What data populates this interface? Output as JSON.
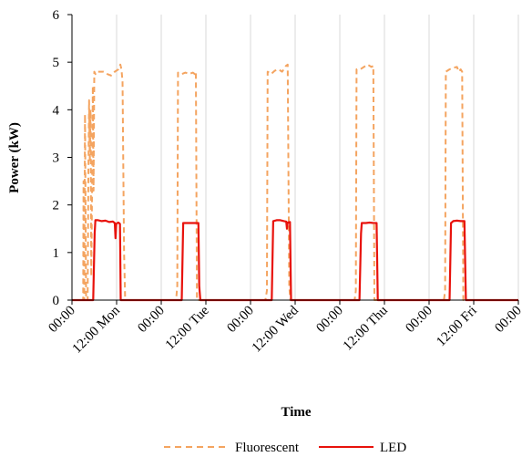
{
  "chart_data": {
    "type": "line",
    "title": "",
    "xlabel": "Time",
    "ylabel": "Power (kW)",
    "xlim": [
      0,
      120
    ],
    "ylim": [
      0,
      6
    ],
    "yticks": [
      0,
      1,
      2,
      3,
      4,
      5,
      6
    ],
    "xticks": [
      {
        "x": 0,
        "label": "00:00"
      },
      {
        "x": 12,
        "label": "12:00 Mon"
      },
      {
        "x": 24,
        "label": "00:00"
      },
      {
        "x": 36,
        "label": "12:00 Tue"
      },
      {
        "x": 48,
        "label": "00:00"
      },
      {
        "x": 60,
        "label": "12:00 Wed"
      },
      {
        "x": 72,
        "label": "00:00"
      },
      {
        "x": 84,
        "label": "12:00 Thu"
      },
      {
        "x": 96,
        "label": "00:00"
      },
      {
        "x": 108,
        "label": "12:00 Fri"
      },
      {
        "x": 120,
        "label": "00:00"
      }
    ],
    "grid": "vertical",
    "legend_position": "bottom",
    "series": [
      {
        "name": "Fluorescent",
        "color": "#f4a460",
        "style": "dashed",
        "points": [
          [
            0,
            0
          ],
          [
            3.0,
            0
          ],
          [
            3.1,
            2.5
          ],
          [
            3.3,
            0
          ],
          [
            3.5,
            3.9
          ],
          [
            3.8,
            0
          ],
          [
            4.2,
            0
          ],
          [
            4.4,
            2.6
          ],
          [
            4.6,
            4.2
          ],
          [
            4.8,
            2.9
          ],
          [
            5.0,
            4.0
          ],
          [
            5.2,
            0.5
          ],
          [
            5.4,
            2.4
          ],
          [
            5.6,
            4.5
          ],
          [
            5.8,
            2.3
          ],
          [
            6.0,
            4.8
          ],
          [
            6.3,
            4.75
          ],
          [
            6.6,
            4.8
          ],
          [
            7.0,
            4.8
          ],
          [
            7.5,
            4.8
          ],
          [
            8.5,
            4.8
          ],
          [
            9.5,
            4.75
          ],
          [
            10.5,
            4.72
          ],
          [
            11.5,
            4.8
          ],
          [
            12.5,
            4.85
          ],
          [
            13.0,
            4.95
          ],
          [
            13.3,
            4.85
          ],
          [
            13.6,
            4.6
          ],
          [
            14.0,
            1.0
          ],
          [
            14.3,
            0
          ],
          [
            24,
            0
          ],
          [
            28.0,
            0
          ],
          [
            28.3,
            0.3
          ],
          [
            28.5,
            4.78
          ],
          [
            29.5,
            4.75
          ],
          [
            30.5,
            4.78
          ],
          [
            31.5,
            4.75
          ],
          [
            32.5,
            4.78
          ],
          [
            33.0,
            4.75
          ],
          [
            33.3,
            4.8
          ],
          [
            33.6,
            0
          ],
          [
            48,
            0
          ],
          [
            52.0,
            0
          ],
          [
            52.4,
            0.2
          ],
          [
            52.6,
            4.8
          ],
          [
            53.5,
            4.75
          ],
          [
            54.5,
            4.82
          ],
          [
            55.5,
            4.85
          ],
          [
            56.5,
            4.8
          ],
          [
            57.5,
            4.92
          ],
          [
            58.0,
            4.95
          ],
          [
            58.4,
            0.3
          ],
          [
            58.7,
            0
          ],
          [
            72,
            0
          ],
          [
            76.0,
            0
          ],
          [
            76.3,
            0.2
          ],
          [
            76.5,
            4.85
          ],
          [
            77.5,
            4.85
          ],
          [
            78.5,
            4.9
          ],
          [
            79.5,
            4.95
          ],
          [
            80.5,
            4.9
          ],
          [
            81.0,
            4.92
          ],
          [
            81.3,
            0
          ],
          [
            96,
            0
          ],
          [
            100.0,
            0
          ],
          [
            100.3,
            0.2
          ],
          [
            100.5,
            4.8
          ],
          [
            101.5,
            4.85
          ],
          [
            102.5,
            4.88
          ],
          [
            103.5,
            4.9
          ],
          [
            104.0,
            4.8
          ],
          [
            104.5,
            4.85
          ],
          [
            104.9,
            4.8
          ],
          [
            105.2,
            0
          ],
          [
            120,
            0
          ]
        ]
      },
      {
        "name": "LED",
        "color": "#e8120c",
        "style": "solid",
        "points": [
          [
            0,
            0
          ],
          [
            5.7,
            0
          ],
          [
            6.1,
            1.4
          ],
          [
            6.3,
            1.68
          ],
          [
            7.0,
            1.68
          ],
          [
            8.0,
            1.66
          ],
          [
            9.0,
            1.67
          ],
          [
            10.0,
            1.64
          ],
          [
            11.0,
            1.65
          ],
          [
            11.5,
            1.62
          ],
          [
            11.7,
            1.3
          ],
          [
            11.9,
            1.6
          ],
          [
            12.2,
            1.62
          ],
          [
            12.5,
            1.63
          ],
          [
            12.9,
            1.6
          ],
          [
            13.1,
            0
          ],
          [
            24,
            0
          ],
          [
            29.5,
            0
          ],
          [
            29.9,
            1.62
          ],
          [
            31.0,
            1.62
          ],
          [
            32.0,
            1.62
          ],
          [
            33.0,
            1.62
          ],
          [
            34.0,
            1.62
          ],
          [
            34.2,
            0.3
          ],
          [
            34.5,
            0
          ],
          [
            48,
            0
          ],
          [
            53.7,
            0
          ],
          [
            54.1,
            1.66
          ],
          [
            55.0,
            1.68
          ],
          [
            56.0,
            1.68
          ],
          [
            57.0,
            1.66
          ],
          [
            57.6,
            1.65
          ],
          [
            57.8,
            1.5
          ],
          [
            58.0,
            1.63
          ],
          [
            58.6,
            1.64
          ],
          [
            58.9,
            0
          ],
          [
            72,
            0
          ],
          [
            77.3,
            0
          ],
          [
            77.7,
            1.4
          ],
          [
            77.9,
            1.62
          ],
          [
            79.0,
            1.62
          ],
          [
            80.0,
            1.63
          ],
          [
            81.0,
            1.62
          ],
          [
            81.9,
            1.62
          ],
          [
            82.2,
            0
          ],
          [
            96,
            0
          ],
          [
            101.5,
            0
          ],
          [
            101.9,
            1.62
          ],
          [
            102.5,
            1.66
          ],
          [
            103.5,
            1.67
          ],
          [
            104.5,
            1.66
          ],
          [
            105.5,
            1.66
          ],
          [
            105.9,
            0
          ],
          [
            120,
            0
          ]
        ]
      }
    ]
  }
}
